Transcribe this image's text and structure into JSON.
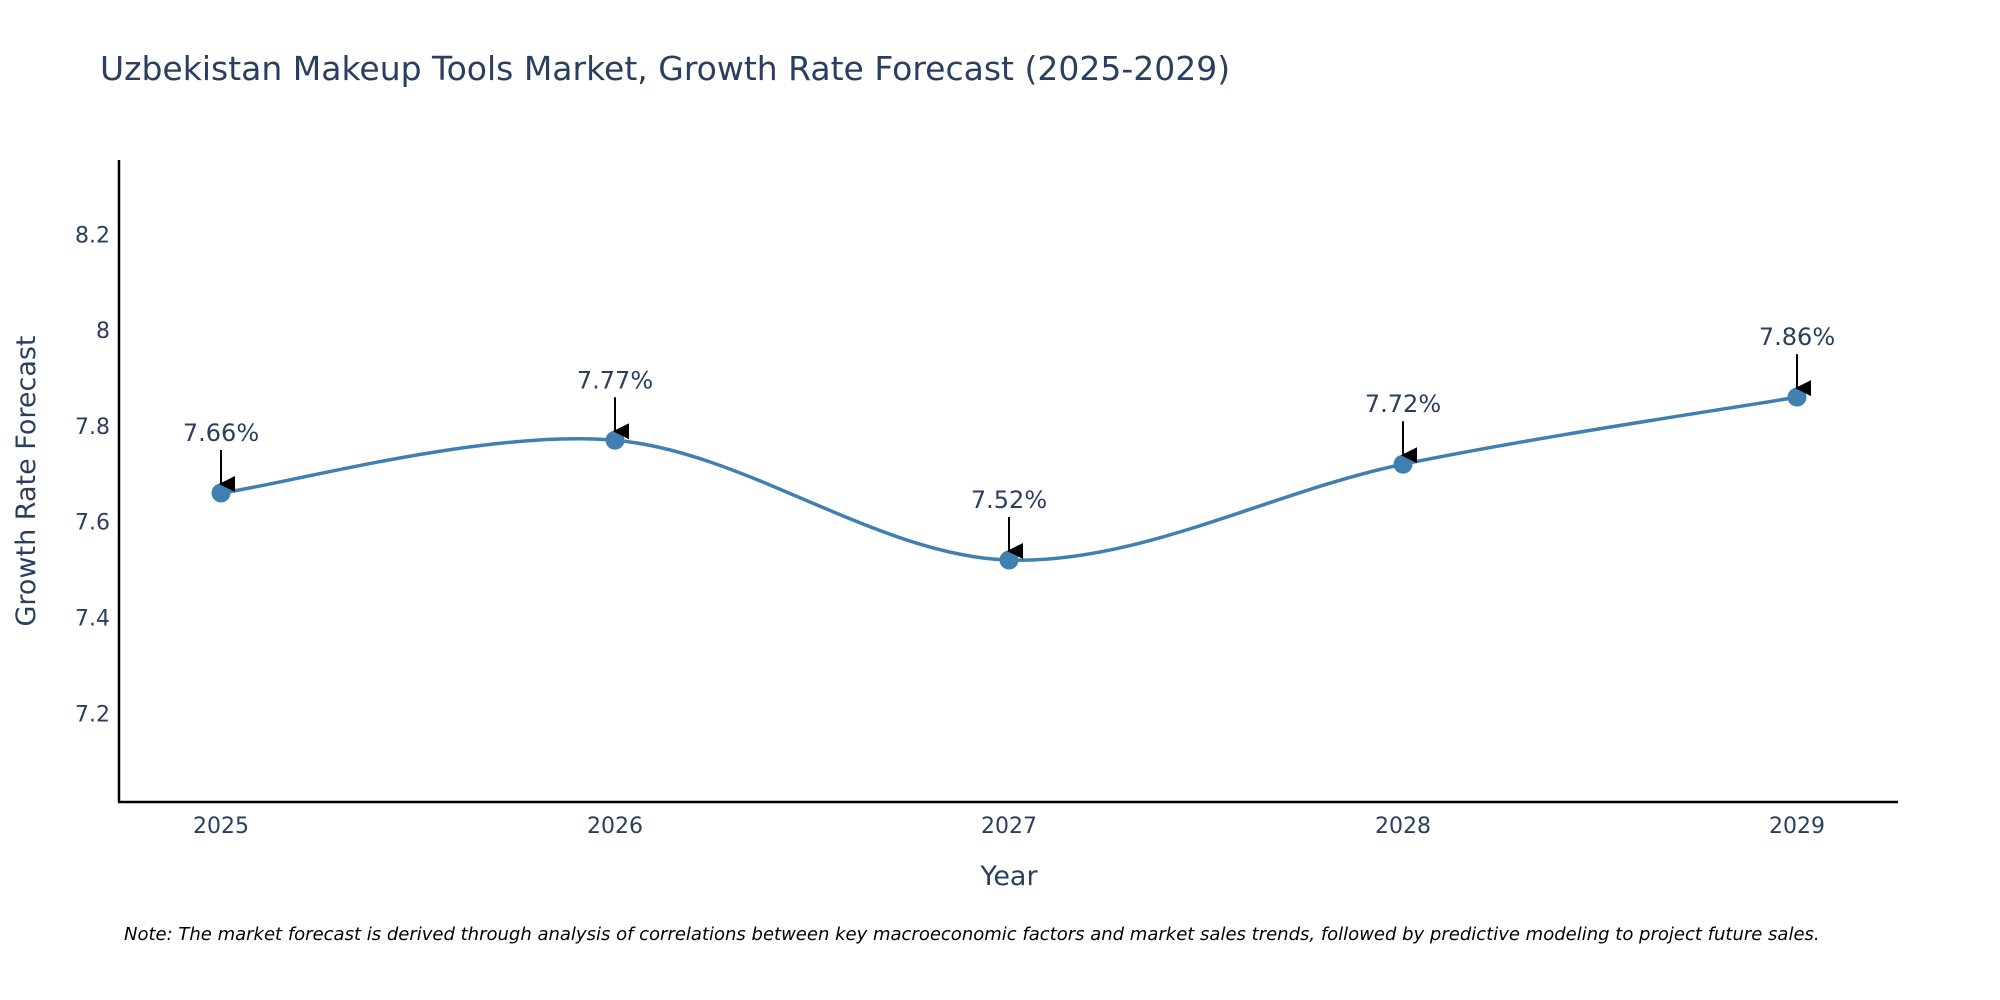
{
  "chart_data": {
    "type": "line",
    "title": "Uzbekistan Makeup Tools Market, Growth Rate Forecast (2025-2029)",
    "xlabel": "Year",
    "ylabel": "Growth Rate Forecast",
    "categories": [
      "2025",
      "2026",
      "2027",
      "2028",
      "2029"
    ],
    "series": [
      {
        "name": "Growth Rate Forecast",
        "values": [
          7.66,
          7.77,
          7.52,
          7.72,
          7.86
        ],
        "labels": [
          "7.66%",
          "7.77%",
          "7.52%",
          "7.72%",
          "7.86%"
        ]
      }
    ],
    "ylim": [
      7.015,
      8.355
    ],
    "yticks": [
      7.2,
      7.4,
      7.6,
      7.8,
      8,
      8.2
    ],
    "ytick_labels": [
      "7.2",
      "7.4",
      "7.6",
      "7.8",
      "8",
      "8.2"
    ],
    "grid": false,
    "line_shape": "spline",
    "line_color": "#4080b0",
    "marker_color": "#4080b0",
    "note": "Note: The market forecast is derived through analysis of correlations between key macroeconomic factors and market sales trends, followed by predictive modeling to project future sales."
  }
}
